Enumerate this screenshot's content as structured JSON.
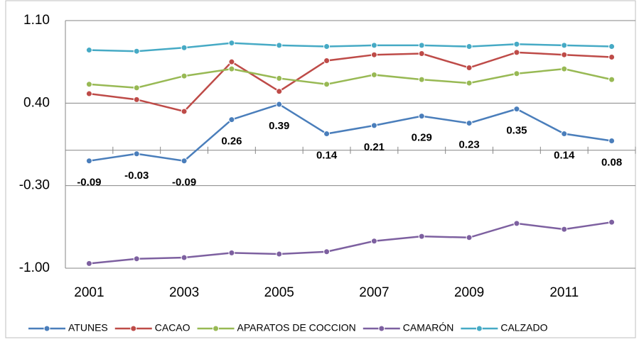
{
  "chart_data": {
    "type": "line",
    "categories": [
      "2001",
      null,
      "2003",
      null,
      "2005",
      null,
      "2007",
      null,
      "2009",
      null,
      "2011",
      null
    ],
    "series": [
      {
        "name": "ATUNES",
        "color": "#4a7ebb",
        "values": [
          -0.09,
          -0.03,
          -0.09,
          0.26,
          0.39,
          0.14,
          0.21,
          0.29,
          0.23,
          0.35,
          0.14,
          0.08
        ],
        "data_labels": true
      },
      {
        "name": "CACAO",
        "color": "#be4b48",
        "values": [
          0.48,
          0.43,
          0.33,
          0.75,
          0.5,
          0.76,
          0.81,
          0.82,
          0.7,
          0.83,
          0.81,
          0.79
        ]
      },
      {
        "name": "APARATOS DE COCCION",
        "color": "#98b954",
        "values": [
          0.56,
          0.53,
          0.63,
          0.69,
          0.61,
          0.56,
          0.64,
          0.6,
          0.57,
          0.65,
          0.69,
          0.6
        ]
      },
      {
        "name": "CAMARÓN",
        "color": "#7d60a0",
        "values": [
          -0.96,
          -0.92,
          -0.91,
          -0.87,
          -0.88,
          -0.86,
          -0.77,
          -0.73,
          -0.74,
          -0.62,
          -0.67,
          -0.61
        ]
      },
      {
        "name": "CALZADO",
        "color": "#46aac5",
        "values": [
          0.85,
          0.84,
          0.87,
          0.91,
          0.89,
          0.88,
          0.89,
          0.89,
          0.88,
          0.9,
          0.89,
          0.88
        ]
      }
    ],
    "ylim": [
      -1.0,
      1.1
    ],
    "yticks": [
      {
        "value": 1.1,
        "label": "1.10"
      },
      {
        "value": 0.4,
        "label": "0.40"
      },
      {
        "value": -0.3,
        "label": "-0.30"
      },
      {
        "value": -1.0,
        "label": "-1.00"
      }
    ],
    "grid": true,
    "legend": "bottom"
  }
}
